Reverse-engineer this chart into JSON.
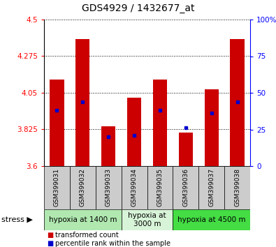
{
  "title": "GDS4929 / 1432677_at",
  "samples": [
    "GSM399031",
    "GSM399032",
    "GSM399033",
    "GSM399034",
    "GSM399035",
    "GSM399036",
    "GSM399037",
    "GSM399038"
  ],
  "transformed_counts": [
    4.13,
    4.38,
    3.845,
    4.02,
    4.13,
    3.805,
    4.07,
    4.38
  ],
  "percentile_ranks": [
    38,
    44,
    20,
    21,
    38,
    26,
    36,
    44
  ],
  "y_min": 3.6,
  "y_max": 4.5,
  "y_ticks": [
    3.6,
    3.825,
    4.05,
    4.275,
    4.5
  ],
  "y_tick_labels": [
    "3.6",
    "3.825",
    "4.05",
    "4.275",
    "4.5"
  ],
  "bar_color": "#cc0000",
  "dot_color": "#0000cc",
  "bar_bottom": 3.6,
  "right_y_ticks": [
    0,
    25,
    50,
    75,
    100
  ],
  "right_y_labels": [
    "0",
    "25",
    "50",
    "75",
    "100%"
  ],
  "stress_groups": [
    {
      "label": "hypoxia at 1400 m",
      "start": 0,
      "end": 3,
      "color": "#b0e8b0"
    },
    {
      "label": "hypoxia at\n3000 m",
      "start": 3,
      "end": 5,
      "color": "#d8f4d8"
    },
    {
      "label": "hypoxia at 4500 m",
      "start": 5,
      "end": 8,
      "color": "#44dd44"
    }
  ],
  "legend_items": [
    {
      "color": "#cc0000",
      "label": "transformed count"
    },
    {
      "color": "#0000cc",
      "label": "percentile rank within the sample"
    }
  ],
  "bg_color": "#ffffff",
  "gray_color": "#cccccc"
}
